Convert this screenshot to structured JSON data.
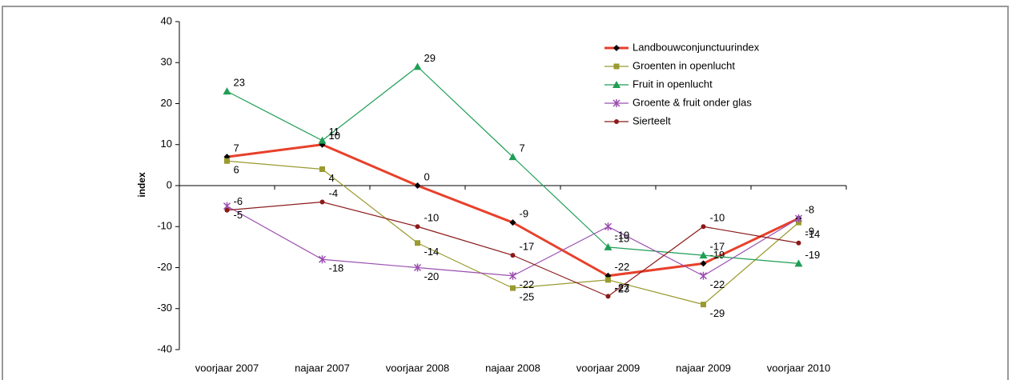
{
  "chart_data": {
    "type": "line",
    "y_label": "index",
    "categories": [
      "voorjaar 2007",
      "najaar 2007",
      "voorjaar 2008",
      "najaar 2008",
      "voorjaar 2009",
      "najaar 2009",
      "voorjaar 2010"
    ],
    "ylim": [
      -40,
      40
    ],
    "yticks": [
      -40,
      -30,
      -20,
      -10,
      0,
      10,
      20,
      30,
      40
    ],
    "legend": "top-right",
    "series": [
      {
        "name": "Landbouwconjunctuurindex",
        "color": "#e8402a",
        "marker": "diamond",
        "values": [
          7,
          10,
          0,
          -9,
          -22,
          -19,
          -8
        ],
        "value_labels": [
          "7",
          "10",
          "0",
          "-9",
          "-22",
          "-19",
          "-8"
        ]
      },
      {
        "name": "Groenten in openlucht",
        "color": "#9a9a30",
        "marker": "square",
        "values": [
          6,
          4,
          -14,
          -25,
          -23,
          -29,
          -9
        ],
        "value_labels": [
          "6",
          "4",
          "-14",
          "-25",
          "-23",
          "-29",
          "-9"
        ]
      },
      {
        "name": "Fruit in openlucht",
        "color": "#1f9e55",
        "marker": "triangle",
        "values": [
          23,
          11,
          29,
          7,
          -15,
          -17,
          -19
        ],
        "value_labels": [
          "23",
          "11",
          "29",
          "7",
          "-15",
          "-17",
          "-19"
        ]
      },
      {
        "name": "Groente & fruit onder glas",
        "color": "#9b4fb0",
        "marker": "star",
        "values": [
          -5,
          -18,
          -20,
          -22,
          -10,
          -22,
          -8
        ],
        "value_labels": [
          "-5",
          "-18",
          "-20",
          "-22",
          "-10",
          "-22",
          null
        ]
      },
      {
        "name": "Sierteelt",
        "color": "#8b1a1a",
        "marker": "circle",
        "values": [
          -6,
          -4,
          -10,
          -17,
          -27,
          -10,
          -14
        ],
        "value_labels": [
          "-6",
          "-4",
          "-10",
          "-17",
          "-27",
          "-10",
          "-14"
        ]
      }
    ]
  }
}
